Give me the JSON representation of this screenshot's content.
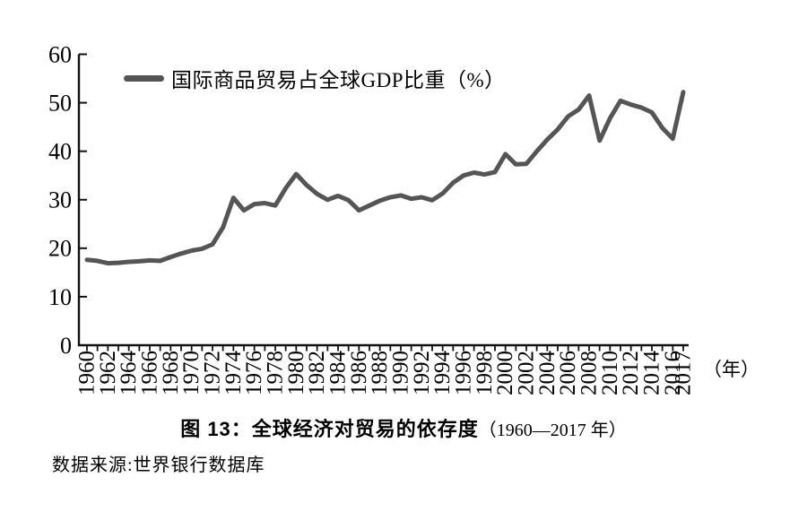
{
  "chart_data": {
    "type": "line",
    "title": "",
    "legend_label": "国际商品贸易占全球GDP比重（%）",
    "legend_position": "top-left-inside",
    "x_unit_label": "（年）",
    "xlabel": "（年）",
    "ylabel": "",
    "ylim": [
      0,
      60
    ],
    "yticks": [
      0,
      10,
      20,
      30,
      40,
      50,
      60
    ],
    "grid": false,
    "axis_color": "#111111",
    "years": [
      1960,
      1961,
      1962,
      1963,
      1964,
      1965,
      1966,
      1967,
      1968,
      1969,
      1970,
      1971,
      1972,
      1973,
      1974,
      1975,
      1976,
      1977,
      1978,
      1979,
      1980,
      1981,
      1982,
      1983,
      1984,
      1985,
      1986,
      1987,
      1988,
      1989,
      1990,
      1991,
      1992,
      1993,
      1994,
      1995,
      1996,
      1997,
      1998,
      1999,
      2000,
      2001,
      2002,
      2003,
      2004,
      2005,
      2006,
      2007,
      2008,
      2009,
      2010,
      2011,
      2012,
      2013,
      2014,
      2015,
      2016,
      2017
    ],
    "xtick_labeled_years": [
      1960,
      1962,
      1964,
      1966,
      1968,
      1970,
      1972,
      1974,
      1976,
      1978,
      1980,
      1982,
      1984,
      1986,
      1988,
      1990,
      1992,
      1994,
      1996,
      1998,
      2000,
      2002,
      2004,
      2006,
      2008,
      2010,
      2012,
      2014,
      2016,
      2017
    ],
    "series": [
      {
        "name": "国际商品贸易占全球GDP比重（%）",
        "color": "#555555",
        "values": [
          17.6,
          17.4,
          16.9,
          17.0,
          17.2,
          17.3,
          17.5,
          17.4,
          18.2,
          18.9,
          19.5,
          19.9,
          20.8,
          24.3,
          30.4,
          27.8,
          29.1,
          29.3,
          28.8,
          32.4,
          35.3,
          33.0,
          31.2,
          30.0,
          30.8,
          29.9,
          27.8,
          28.8,
          29.8,
          30.5,
          30.9,
          30.2,
          30.5,
          29.9,
          31.3,
          33.5,
          35.0,
          35.6,
          35.2,
          35.7,
          39.4,
          37.3,
          37.4,
          40.0,
          42.4,
          44.5,
          47.2,
          48.6,
          51.5,
          42.2,
          46.8,
          50.4,
          49.6,
          49.0,
          48.0,
          44.8,
          42.6,
          52.2
        ]
      }
    ]
  },
  "caption": {
    "main": "图 13：全球经济对贸易的依存度",
    "range": "（1960—2017 年）"
  },
  "source": {
    "text": "数据来源:世界银行数据库"
  }
}
